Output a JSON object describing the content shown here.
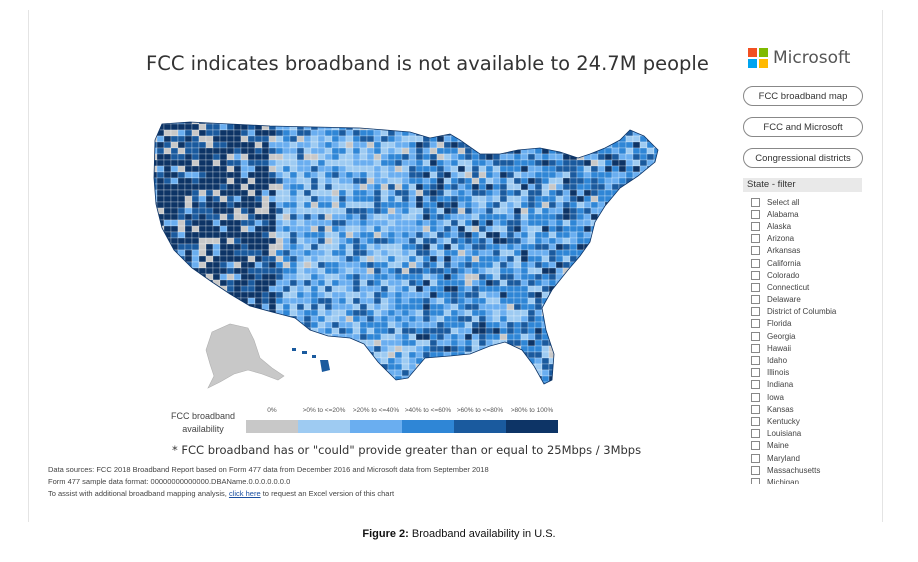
{
  "title": "FCC indicates broadband is not available to 24.7M people",
  "brand": {
    "name": "Microsoft",
    "colors": [
      "#f25022",
      "#7fba00",
      "#00a4ef",
      "#ffb900"
    ]
  },
  "buttons": [
    "FCC broadband map",
    "FCC and Microsoft",
    "Congressional districts"
  ],
  "filter": {
    "title": "State - filter",
    "items": [
      "Select all",
      "Alabama",
      "Alaska",
      "Arizona",
      "Arkansas",
      "California",
      "Colorado",
      "Connecticut",
      "Delaware",
      "District of Columbia",
      "Florida",
      "Georgia",
      "Hawaii",
      "Idaho",
      "Illinois",
      "Indiana",
      "Iowa",
      "Kansas",
      "Kentucky",
      "Louisiana",
      "Maine",
      "Maryland",
      "Massachusetts",
      "Michigan"
    ]
  },
  "legend": {
    "label": "FCC broadband availability",
    "ranges": [
      "0%",
      ">0% to <=20%",
      ">20% to <=40%",
      ">40% to <=60%",
      ">60% to <=80%",
      ">80% to 100%"
    ],
    "colors": [
      "#c8c8c8",
      "#9ecbf2",
      "#6aaef0",
      "#2f86d6",
      "#1a5a9e",
      "#0d3466"
    ]
  },
  "note": "* FCC broadband has or \"could\" provide greater than or equal to 25Mbps / 3Mbps",
  "sources": {
    "line1": "Data sources:  FCC 2018 Broadband Report based on Form 477 data from December 2016 and Microsoft data from September 2018",
    "line2": "Form 477 sample data format: 00000000000000.DBAName.0.0.0.0.0.0.0",
    "line3_prefix": "To assist with additional broadband mapping analysis, ",
    "line3_link": "click here",
    "line3_suffix": " to request an Excel version of this chart"
  },
  "caption": {
    "label": "Figure 2:",
    "text": " Broadband availability in U.S."
  }
}
